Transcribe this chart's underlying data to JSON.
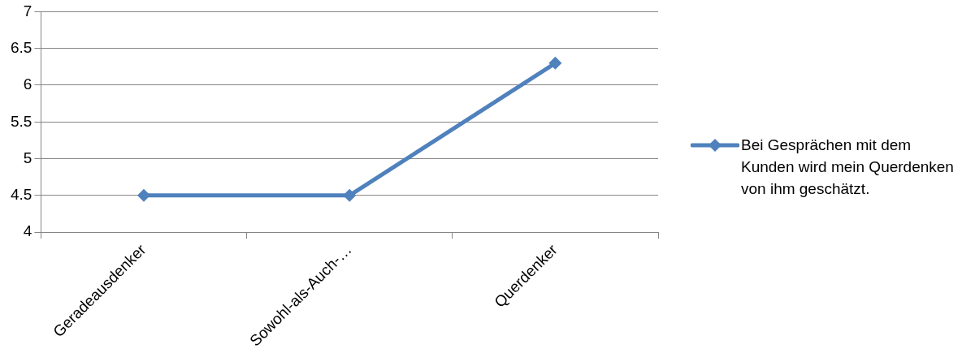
{
  "chart_data": {
    "type": "line",
    "categories": [
      "Geradeausdenker",
      "Sowohl-als-Auch-…",
      "Querdenker"
    ],
    "series": [
      {
        "name": "Bei Gesprächen mit dem Kunden wird mein Querdenken von ihm geschätzt.",
        "color": "#4f81bd",
        "values": [
          4.5,
          4.5,
          6.3
        ]
      }
    ],
    "ylim": [
      4,
      7
    ],
    "yticks": [
      4,
      4.5,
      5,
      5.5,
      6,
      6.5,
      7
    ],
    "grid": "y",
    "legend": "right",
    "marker": "diamond",
    "line_style": "solid"
  }
}
